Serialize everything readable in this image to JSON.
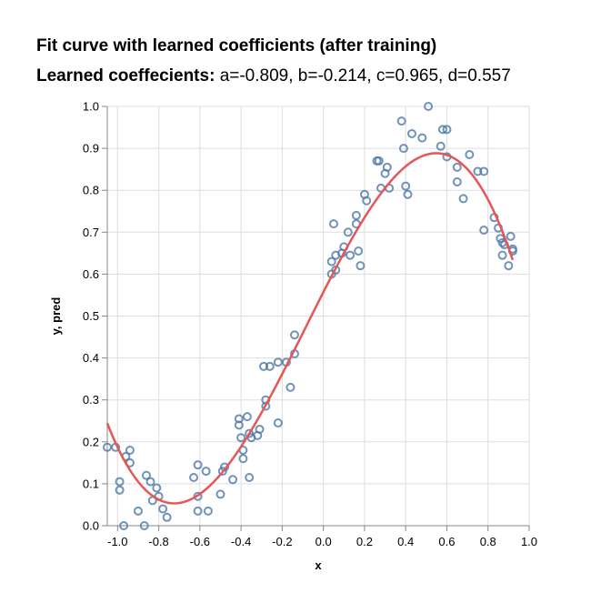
{
  "title": "Fit curve with learned coefficients (after training)",
  "subtitle": {
    "label": "Learned coeffecients:",
    "values": "a=-0.809, b=-0.214, c=0.965, d=0.557"
  },
  "colors": {
    "points": "#4c78a8",
    "curve": "#e45756",
    "grid": "#dddddd",
    "axis": "#888888"
  },
  "chart_data": {
    "type": "scatter",
    "xlabel": "x",
    "ylabel": "y, pred",
    "xlim": [
      -1.05,
      1.0
    ],
    "ylim": [
      0.0,
      1.0
    ],
    "xticks": [
      -1.0,
      -0.8,
      -0.6,
      -0.4,
      -0.2,
      0.0,
      0.2,
      0.4,
      0.6,
      0.8,
      1.0
    ],
    "yticks": [
      0.0,
      0.1,
      0.2,
      0.3,
      0.4,
      0.5,
      0.6,
      0.7,
      0.8,
      0.9,
      1.0
    ],
    "xtick_labels": [
      "-1.0",
      "-0.8",
      "-0.6",
      "-0.4",
      "-0.2",
      "0.0",
      "0.2",
      "0.4",
      "0.6",
      "0.8",
      "1.0"
    ],
    "ytick_labels": [
      "0.0",
      "0.1",
      "0.2",
      "0.3",
      "0.4",
      "0.5",
      "0.6",
      "0.7",
      "0.8",
      "0.9",
      "1.0"
    ],
    "grid": true,
    "curve_coefficients": {
      "a": -0.809,
      "b": -0.214,
      "c": 0.965,
      "d": 0.557
    },
    "curve_x_range": [
      -1.05,
      0.92
    ],
    "points": [
      {
        "x": -1.05,
        "y": 0.187
      },
      {
        "x": -1.01,
        "y": 0.187
      },
      {
        "x": -0.99,
        "y": 0.105
      },
      {
        "x": -0.99,
        "y": 0.085
      },
      {
        "x": -0.97,
        "y": 0.0
      },
      {
        "x": -0.96,
        "y": 0.165
      },
      {
        "x": -0.94,
        "y": 0.15
      },
      {
        "x": -0.94,
        "y": 0.18
      },
      {
        "x": -0.9,
        "y": 0.035
      },
      {
        "x": -0.87,
        "y": 0.0
      },
      {
        "x": -0.86,
        "y": 0.12
      },
      {
        "x": -0.84,
        "y": 0.105
      },
      {
        "x": -0.83,
        "y": 0.06
      },
      {
        "x": -0.81,
        "y": 0.09
      },
      {
        "x": -0.8,
        "y": 0.07
      },
      {
        "x": -0.78,
        "y": 0.04
      },
      {
        "x": -0.76,
        "y": 0.02
      },
      {
        "x": -0.63,
        "y": 0.115
      },
      {
        "x": -0.61,
        "y": 0.145
      },
      {
        "x": -0.61,
        "y": 0.07
      },
      {
        "x": -0.61,
        "y": 0.035
      },
      {
        "x": -0.57,
        "y": 0.13
      },
      {
        "x": -0.56,
        "y": 0.035
      },
      {
        "x": -0.5,
        "y": 0.075
      },
      {
        "x": -0.49,
        "y": 0.13
      },
      {
        "x": -0.48,
        "y": 0.14
      },
      {
        "x": -0.44,
        "y": 0.11
      },
      {
        "x": -0.41,
        "y": 0.24
      },
      {
        "x": -0.41,
        "y": 0.255
      },
      {
        "x": -0.4,
        "y": 0.21
      },
      {
        "x": -0.39,
        "y": 0.18
      },
      {
        "x": -0.39,
        "y": 0.16
      },
      {
        "x": -0.37,
        "y": 0.26
      },
      {
        "x": -0.36,
        "y": 0.22
      },
      {
        "x": -0.36,
        "y": 0.115
      },
      {
        "x": -0.35,
        "y": 0.21
      },
      {
        "x": -0.32,
        "y": 0.215
      },
      {
        "x": -0.31,
        "y": 0.23
      },
      {
        "x": -0.29,
        "y": 0.38
      },
      {
        "x": -0.28,
        "y": 0.3
      },
      {
        "x": -0.28,
        "y": 0.285
      },
      {
        "x": -0.26,
        "y": 0.38
      },
      {
        "x": -0.22,
        "y": 0.39
      },
      {
        "x": -0.22,
        "y": 0.245
      },
      {
        "x": -0.16,
        "y": 0.33
      },
      {
        "x": -0.14,
        "y": 0.41
      },
      {
        "x": -0.14,
        "y": 0.455
      },
      {
        "x": -0.18,
        "y": 0.39
      },
      {
        "x": 0.04,
        "y": 0.6
      },
      {
        "x": 0.04,
        "y": 0.63
      },
      {
        "x": 0.05,
        "y": 0.72
      },
      {
        "x": 0.06,
        "y": 0.61
      },
      {
        "x": 0.06,
        "y": 0.645
      },
      {
        "x": 0.09,
        "y": 0.65
      },
      {
        "x": 0.1,
        "y": 0.665
      },
      {
        "x": 0.12,
        "y": 0.7
      },
      {
        "x": 0.13,
        "y": 0.645
      },
      {
        "x": 0.16,
        "y": 0.74
      },
      {
        "x": 0.16,
        "y": 0.72
      },
      {
        "x": 0.17,
        "y": 0.655
      },
      {
        "x": 0.18,
        "y": 0.62
      },
      {
        "x": 0.2,
        "y": 0.79
      },
      {
        "x": 0.21,
        "y": 0.775
      },
      {
        "x": 0.26,
        "y": 0.87
      },
      {
        "x": 0.27,
        "y": 0.87
      },
      {
        "x": 0.28,
        "y": 0.805
      },
      {
        "x": 0.3,
        "y": 0.84
      },
      {
        "x": 0.31,
        "y": 0.855
      },
      {
        "x": 0.32,
        "y": 0.805
      },
      {
        "x": 0.38,
        "y": 0.965
      },
      {
        "x": 0.39,
        "y": 0.9
      },
      {
        "x": 0.4,
        "y": 0.81
      },
      {
        "x": 0.41,
        "y": 0.79
      },
      {
        "x": 0.43,
        "y": 0.935
      },
      {
        "x": 0.48,
        "y": 0.925
      },
      {
        "x": 0.51,
        "y": 1.0
      },
      {
        "x": 0.57,
        "y": 0.905
      },
      {
        "x": 0.58,
        "y": 0.945
      },
      {
        "x": 0.6,
        "y": 0.945
      },
      {
        "x": 0.6,
        "y": 0.88
      },
      {
        "x": 0.65,
        "y": 0.855
      },
      {
        "x": 0.65,
        "y": 0.82
      },
      {
        "x": 0.68,
        "y": 0.78
      },
      {
        "x": 0.71,
        "y": 0.885
      },
      {
        "x": 0.75,
        "y": 0.845
      },
      {
        "x": 0.78,
        "y": 0.845
      },
      {
        "x": 0.78,
        "y": 0.705
      },
      {
        "x": 0.83,
        "y": 0.735
      },
      {
        "x": 0.85,
        "y": 0.71
      },
      {
        "x": 0.86,
        "y": 0.685
      },
      {
        "x": 0.87,
        "y": 0.675
      },
      {
        "x": 0.88,
        "y": 0.67
      },
      {
        "x": 0.87,
        "y": 0.645
      },
      {
        "x": 0.9,
        "y": 0.62
      },
      {
        "x": 0.91,
        "y": 0.69
      },
      {
        "x": 0.92,
        "y": 0.66
      },
      {
        "x": 0.92,
        "y": 0.655
      }
    ]
  }
}
